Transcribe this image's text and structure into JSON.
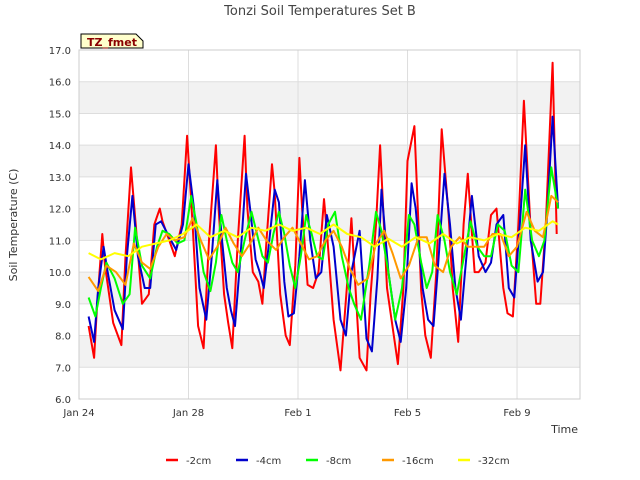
{
  "chart_data": {
    "type": "line",
    "title": "Tonzi Soil Temperatures Set B",
    "xlabel": "Time",
    "ylabel": "Soil Temperature (C)",
    "badge": "TZ_fmet",
    "ylim": [
      6.0,
      17.0
    ],
    "xlim_days": [
      0,
      18.3
    ],
    "x_ticks": [
      {
        "day": 0,
        "label": "Jan 24"
      },
      {
        "day": 4,
        "label": "Jan 28"
      },
      {
        "day": 8,
        "label": "Feb 1"
      },
      {
        "day": 12,
        "label": "Feb 5"
      },
      {
        "day": 16,
        "label": "Feb 9"
      }
    ],
    "y_ticks": [
      "6.0",
      "7.0",
      "8.0",
      "9.0",
      "10.0",
      "11.0",
      "12.0",
      "13.0",
      "14.0",
      "15.0",
      "16.0",
      "17.0"
    ],
    "grid": true,
    "legend_position": "bottom",
    "series": [
      {
        "name": "-2cm",
        "color": "#ff0000",
        "x": [
          0.35,
          0.55,
          0.65,
          0.85,
          0.95,
          1.25,
          1.55,
          1.7,
          1.9,
          2.1,
          2.3,
          2.55,
          2.75,
          2.95,
          3.05,
          3.3,
          3.5,
          3.75,
          3.95,
          4.15,
          4.35,
          4.55,
          4.75,
          5.0,
          5.1,
          5.3,
          5.45,
          5.6,
          5.8,
          6.05,
          6.15,
          6.35,
          6.55,
          6.7,
          6.85,
          7.05,
          7.15,
          7.35,
          7.55,
          7.7,
          7.9,
          8.05,
          8.15,
          8.35,
          8.55,
          8.75,
          8.95,
          9.05,
          9.3,
          9.55,
          9.8,
          9.95,
          10.25,
          10.5,
          10.65,
          10.85,
          11.0,
          11.25,
          11.5,
          11.65,
          11.85,
          12.0,
          12.25,
          12.5,
          12.65,
          12.85,
          13.05,
          13.25,
          13.5,
          13.65,
          13.85,
          14.05,
          14.2,
          14.45,
          14.6,
          14.85,
          15.05,
          15.25,
          15.5,
          15.65,
          15.85,
          16.05,
          16.25,
          16.5,
          16.7,
          16.85,
          17.05,
          17.3,
          17.45
        ],
        "y": [
          8.3,
          7.3,
          8.8,
          11.2,
          10.2,
          8.4,
          7.7,
          10.5,
          13.3,
          11.2,
          9.0,
          9.3,
          11.5,
          12.0,
          11.6,
          11.0,
          10.5,
          11.5,
          14.3,
          11.5,
          8.3,
          7.6,
          11.0,
          14.0,
          12.0,
          9.3,
          8.4,
          7.6,
          11.0,
          14.3,
          12.0,
          10.0,
          9.7,
          9.0,
          11.0,
          13.4,
          12.5,
          9.3,
          8.0,
          7.7,
          10.2,
          13.6,
          12.0,
          9.6,
          9.5,
          10.0,
          12.3,
          11.3,
          8.5,
          6.9,
          9.7,
          11.7,
          7.3,
          6.9,
          9.3,
          11.5,
          14.0,
          9.5,
          8.0,
          7.1,
          9.5,
          13.5,
          14.6,
          9.4,
          8.0,
          7.3,
          10.0,
          14.5,
          11.8,
          9.5,
          7.8,
          11.5,
          13.1,
          10.0,
          10.0,
          10.3,
          11.8,
          12.0,
          9.5,
          8.7,
          8.6,
          11.5,
          15.4,
          11.3,
          9.0,
          9.0,
          11.5,
          16.6,
          11.2
        ]
      },
      {
        "name": "-4cm",
        "color": "#0000cc",
        "x": [
          0.35,
          0.55,
          0.7,
          0.9,
          1.05,
          1.3,
          1.6,
          1.75,
          1.95,
          2.15,
          2.4,
          2.6,
          2.8,
          3.0,
          3.3,
          3.55,
          3.8,
          4.0,
          4.2,
          4.4,
          4.65,
          4.85,
          5.05,
          5.2,
          5.4,
          5.55,
          5.7,
          5.9,
          6.1,
          6.25,
          6.45,
          6.6,
          6.75,
          6.95,
          7.15,
          7.3,
          7.5,
          7.65,
          7.85,
          8.05,
          8.25,
          8.45,
          8.65,
          8.85,
          9.05,
          9.3,
          9.55,
          9.75,
          9.95,
          10.25,
          10.5,
          10.7,
          10.9,
          11.05,
          11.3,
          11.55,
          11.75,
          11.95,
          12.15,
          12.3,
          12.55,
          12.75,
          12.95,
          13.1,
          13.35,
          13.55,
          13.75,
          13.95,
          14.1,
          14.35,
          14.6,
          14.85,
          15.05,
          15.25,
          15.5,
          15.7,
          15.9,
          16.1,
          16.3,
          16.5,
          16.75,
          16.95,
          17.1,
          17.3,
          17.5
        ],
        "y": [
          8.6,
          7.8,
          9.5,
          10.8,
          10.0,
          8.8,
          8.2,
          10.5,
          12.4,
          10.5,
          9.5,
          9.5,
          11.5,
          11.6,
          11.1,
          10.7,
          11.5,
          13.4,
          12.0,
          9.5,
          8.5,
          10.5,
          12.9,
          11.2,
          9.5,
          8.8,
          8.3,
          10.5,
          13.1,
          12.0,
          10.4,
          10.0,
          9.5,
          11.0,
          12.6,
          12.2,
          9.7,
          8.6,
          8.7,
          10.5,
          12.9,
          11.0,
          9.8,
          10.0,
          11.8,
          10.8,
          8.5,
          8.0,
          10.0,
          11.3,
          7.9,
          7.5,
          9.8,
          12.6,
          10.0,
          8.5,
          7.8,
          9.5,
          12.8,
          12.0,
          9.5,
          8.5,
          8.3,
          10.0,
          13.1,
          11.5,
          9.5,
          8.5,
          10.0,
          12.4,
          10.5,
          10.0,
          10.3,
          11.5,
          11.8,
          9.5,
          9.2,
          11.5,
          14.0,
          11.0,
          9.7,
          10.0,
          11.8,
          14.9,
          12.0
        ]
      },
      {
        "name": "-8cm",
        "color": "#00ff00",
        "x": [
          0.35,
          0.6,
          0.8,
          1.0,
          1.3,
          1.6,
          1.85,
          2.05,
          2.3,
          2.6,
          2.85,
          3.05,
          3.3,
          3.6,
          3.85,
          4.1,
          4.3,
          4.55,
          4.8,
          5.0,
          5.2,
          5.4,
          5.6,
          5.8,
          6.05,
          6.3,
          6.5,
          6.7,
          6.9,
          7.1,
          7.3,
          7.5,
          7.7,
          7.9,
          8.1,
          8.3,
          8.5,
          8.7,
          8.9,
          9.1,
          9.35,
          9.6,
          9.85,
          10.05,
          10.3,
          10.6,
          10.85,
          11.05,
          11.3,
          11.55,
          11.8,
          12.05,
          12.25,
          12.5,
          12.7,
          12.9,
          13.1,
          13.35,
          13.55,
          13.8,
          14.0,
          14.3,
          14.55,
          14.8,
          15.05,
          15.3,
          15.55,
          15.8,
          16.05,
          16.3,
          16.55,
          16.8,
          17.0,
          17.25,
          17.5
        ],
        "y": [
          9.2,
          8.6,
          9.5,
          10.3,
          9.8,
          9.0,
          9.3,
          11.4,
          10.2,
          9.8,
          10.8,
          11.3,
          11.2,
          10.9,
          11.0,
          12.4,
          11.5,
          10.0,
          9.4,
          10.3,
          11.8,
          11.0,
          10.3,
          10.0,
          11.0,
          11.9,
          11.2,
          10.5,
          10.3,
          11.2,
          11.9,
          11.2,
          10.2,
          9.5,
          10.5,
          11.8,
          11.2,
          10.5,
          10.4,
          11.5,
          11.9,
          10.5,
          9.5,
          9.0,
          8.5,
          10.2,
          11.9,
          11.3,
          10.0,
          8.5,
          9.5,
          11.8,
          11.5,
          10.3,
          9.5,
          10.0,
          11.8,
          11.0,
          10.0,
          9.3,
          10.2,
          11.6,
          10.8,
          10.5,
          10.5,
          11.5,
          11.3,
          10.2,
          10.0,
          12.6,
          11.0,
          10.5,
          11.0,
          13.3,
          12.0
        ]
      },
      {
        "name": "-16cm",
        "color": "#ff9900",
        "x": [
          0.35,
          0.7,
          1.0,
          1.35,
          1.7,
          2.0,
          2.3,
          2.6,
          2.9,
          3.2,
          3.5,
          3.85,
          4.15,
          4.45,
          4.75,
          5.05,
          5.35,
          5.65,
          5.95,
          6.25,
          6.55,
          6.85,
          7.2,
          7.5,
          7.8,
          8.1,
          8.4,
          8.7,
          9.0,
          9.3,
          9.6,
          9.9,
          10.2,
          10.55,
          10.85,
          11.15,
          11.45,
          11.75,
          12.05,
          12.4,
          12.7,
          13.0,
          13.3,
          13.6,
          13.9,
          14.2,
          14.5,
          14.8,
          15.1,
          15.4,
          15.7,
          16.0,
          16.35,
          16.65,
          16.95,
          17.25,
          17.5
        ],
        "y": [
          9.85,
          9.4,
          10.2,
          10.0,
          9.6,
          10.9,
          10.3,
          10.1,
          10.8,
          11.2,
          11.0,
          11.1,
          11.7,
          11.0,
          10.4,
          10.8,
          11.4,
          10.9,
          10.5,
          10.9,
          11.4,
          11.0,
          10.7,
          11.1,
          11.4,
          10.9,
          10.4,
          10.5,
          11.0,
          11.3,
          10.8,
          10.1,
          9.6,
          9.8,
          10.9,
          11.3,
          10.6,
          9.8,
          10.2,
          11.1,
          11.1,
          10.2,
          10.0,
          10.8,
          11.1,
          10.8,
          10.8,
          10.8,
          11.2,
          11.2,
          10.5,
          10.8,
          11.9,
          11.3,
          11.1,
          12.4,
          12.2
        ]
      },
      {
        "name": "-32cm",
        "color": "#ffff00",
        "x": [
          0.35,
          0.8,
          1.3,
          1.8,
          2.3,
          2.8,
          3.3,
          3.8,
          4.3,
          4.8,
          5.3,
          5.8,
          6.3,
          6.8,
          7.3,
          7.8,
          8.3,
          8.8,
          9.3,
          9.8,
          10.3,
          10.8,
          11.3,
          11.8,
          12.3,
          12.8,
          13.3,
          13.8,
          14.3,
          14.8,
          15.3,
          15.8,
          16.3,
          16.8,
          17.3,
          17.5
        ],
        "y": [
          10.6,
          10.4,
          10.6,
          10.5,
          10.8,
          10.9,
          11.0,
          11.2,
          11.5,
          11.1,
          11.3,
          11.1,
          11.4,
          11.3,
          11.5,
          11.3,
          11.4,
          11.2,
          11.5,
          11.2,
          11.1,
          10.8,
          11.05,
          10.8,
          11.1,
          10.9,
          11.2,
          10.9,
          11.1,
          11.0,
          11.2,
          11.1,
          11.4,
          11.3,
          11.6,
          11.5
        ]
      }
    ]
  }
}
